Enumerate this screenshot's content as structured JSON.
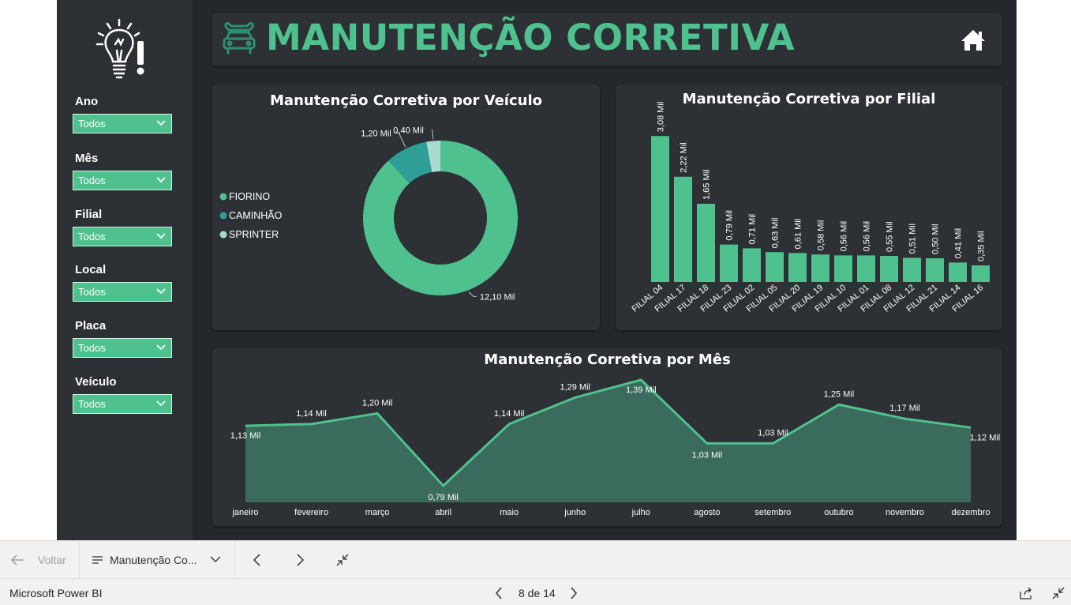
{
  "header": {
    "title": "MANUTENÇÃO CORRETIVA"
  },
  "filters": [
    {
      "label": "Ano",
      "value": "Todos"
    },
    {
      "label": "Mês",
      "value": "Todos"
    },
    {
      "label": "Filial",
      "value": "Todos"
    },
    {
      "label": "Local",
      "value": "Todos"
    },
    {
      "label": "Placa",
      "value": "Todos"
    },
    {
      "label": "Veículo",
      "value": "Todos"
    }
  ],
  "colors": {
    "accent": "#4fc18e",
    "accent_dark": "#2e9e96",
    "accent_light": "#a8dcd1",
    "background": "#24282c",
    "panel": "#2d3135",
    "area_fill": "#3a6b5c"
  },
  "chart_data": [
    {
      "type": "pie",
      "title": "Manutenção Corretiva por Veículo",
      "labels": [
        "FIORINO",
        "CAMINHÃO",
        "SPRINTER"
      ],
      "values": [
        12.1,
        1.2,
        0.4
      ],
      "data_labels": [
        "12,10 Mil",
        "1,20 Mil",
        "0,40 Mil"
      ],
      "colors": [
        "#4fc18e",
        "#2e9e96",
        "#a8dcd1"
      ],
      "legend_position": "left"
    },
    {
      "type": "bar",
      "title": "Manutenção Corretiva por Filial",
      "categories": [
        "FILIAL 04",
        "FILIAL 17",
        "FILIAL 18",
        "FILIAL 23",
        "FILIAL 02",
        "FILIAL 05",
        "FILIAL 20",
        "FILIAL 19",
        "FILIAL 10",
        "FILIAL 01",
        "FILIAL 08",
        "FILIAL 12",
        "FILIAL 21",
        "FILIAL 14",
        "FILIAL 16"
      ],
      "values": [
        3.08,
        2.22,
        1.65,
        0.79,
        0.71,
        0.63,
        0.61,
        0.58,
        0.56,
        0.56,
        0.55,
        0.51,
        0.5,
        0.41,
        0.35
      ],
      "data_labels": [
        "3,08 Mil",
        "2,22 Mil",
        "1,65 Mil",
        "0,79 Mil",
        "0,71 Mil",
        "0,63 Mil",
        "0,61 Mil",
        "0,58 Mil",
        "0,56 Mil",
        "0,56 Mil",
        "0,55 Mil",
        "0,51 Mil",
        "0,50 Mil",
        "0,41 Mil",
        "0,35 Mil"
      ],
      "ylim": [
        0,
        3.1
      ],
      "grid": false
    },
    {
      "type": "area",
      "title": "Manutenção Corretiva por Mês",
      "categories": [
        "janeiro",
        "fevereiro",
        "março",
        "abril",
        "maio",
        "junho",
        "julho",
        "agosto",
        "setembro",
        "outubro",
        "novembro",
        "dezembro"
      ],
      "values": [
        1.13,
        1.14,
        1.2,
        0.79,
        1.14,
        1.29,
        1.39,
        1.03,
        1.03,
        1.25,
        1.17,
        1.12
      ],
      "data_labels": [
        "1,13 Mil",
        "1,14 Mil",
        "1,20 Mil",
        "0,79 Mil",
        "1,14 Mil",
        "1,29 Mil",
        "1,39 Mil",
        "1,03 Mil",
        "1,03 Mil",
        "1,25 Mil",
        "1,17 Mil",
        "1,12 Mil"
      ],
      "ylim": [
        0.8,
        1.4
      ],
      "grid": false
    }
  ],
  "navigation": {
    "back_label": "Voltar",
    "page_name": "Manutenção Co...",
    "page_counter": "8 de 14"
  },
  "status": {
    "app_name": "Microsoft Power BI"
  }
}
